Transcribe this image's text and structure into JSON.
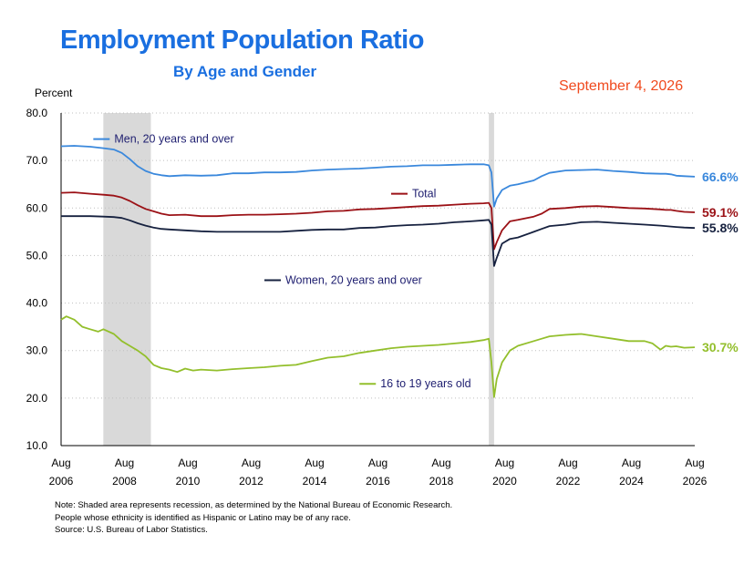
{
  "header": {
    "title": "Employment Population Ratio",
    "subtitle": "By Age and Gender",
    "date": "September 4, 2026",
    "ylabel": "Percent"
  },
  "notes": [
    "Note: Shaded area represents recession, as determined by the National Bureau of Economic Research.",
    "People whose ethnicity is identified as Hispanic or Latino may be of any race.",
    "Source: U.S. Bureau of Labor Statistics."
  ],
  "colors": {
    "men": "#3a88dc",
    "total": "#9b1116",
    "women": "#16213f",
    "teen": "#93bf2c",
    "recession": "#d9d9d9",
    "grid": "#bfbfbf"
  },
  "chart_data": {
    "type": "line",
    "ylabel": "Percent",
    "ylim": [
      10,
      80
    ],
    "yticks": [
      "10.0",
      "20.0",
      "30.0",
      "40.0",
      "50.0",
      "60.0",
      "70.0",
      "80.0"
    ],
    "xlim": [
      2006.583,
      2026.583
    ],
    "xticks": [
      {
        "month": "Aug",
        "year": "2006"
      },
      {
        "month": "Aug",
        "year": "2008"
      },
      {
        "month": "Aug",
        "year": "2010"
      },
      {
        "month": "Aug",
        "year": "2012"
      },
      {
        "month": "Aug",
        "year": "2014"
      },
      {
        "month": "Aug",
        "year": "2016"
      },
      {
        "month": "Aug",
        "year": "2018"
      },
      {
        "month": "Aug",
        "year": "2020"
      },
      {
        "month": "Aug",
        "year": "2022"
      },
      {
        "month": "Aug",
        "year": "2024"
      },
      {
        "month": "Aug",
        "year": "2026"
      }
    ],
    "grid": "horizontal dotted",
    "recessions": [
      [
        2007.917,
        2009.417
      ],
      [
        2020.083,
        2020.25
      ]
    ],
    "series": [
      {
        "key": "men",
        "name": "Men, 20 years and over",
        "end_label": "66.6%",
        "legend_x": 2007.6,
        "legend_y": 74.5,
        "points": [
          [
            2006.583,
            73.0
          ],
          [
            2007.0,
            73.1
          ],
          [
            2007.5,
            72.9
          ],
          [
            2007.917,
            72.6
          ],
          [
            2008.25,
            72.3
          ],
          [
            2008.5,
            71.6
          ],
          [
            2008.75,
            70.3
          ],
          [
            2009.0,
            68.8
          ],
          [
            2009.25,
            67.8
          ],
          [
            2009.5,
            67.2
          ],
          [
            2009.75,
            66.9
          ],
          [
            2010.0,
            66.7
          ],
          [
            2010.5,
            66.9
          ],
          [
            2011.0,
            66.8
          ],
          [
            2011.5,
            66.9
          ],
          [
            2012.0,
            67.3
          ],
          [
            2012.5,
            67.3
          ],
          [
            2013.0,
            67.5
          ],
          [
            2013.5,
            67.5
          ],
          [
            2014.0,
            67.6
          ],
          [
            2014.5,
            67.9
          ],
          [
            2015.0,
            68.1
          ],
          [
            2015.5,
            68.2
          ],
          [
            2016.0,
            68.3
          ],
          [
            2016.5,
            68.5
          ],
          [
            2017.0,
            68.7
          ],
          [
            2017.5,
            68.8
          ],
          [
            2018.0,
            69.0
          ],
          [
            2018.5,
            69.0
          ],
          [
            2019.0,
            69.1
          ],
          [
            2019.5,
            69.2
          ],
          [
            2019.917,
            69.2
          ],
          [
            2020.083,
            69.0
          ],
          [
            2020.167,
            67.5
          ],
          [
            2020.25,
            60.3
          ],
          [
            2020.333,
            62.0
          ],
          [
            2020.5,
            63.8
          ],
          [
            2020.75,
            64.7
          ],
          [
            2021.0,
            65.0
          ],
          [
            2021.5,
            65.8
          ],
          [
            2021.75,
            66.7
          ],
          [
            2022.0,
            67.4
          ],
          [
            2022.5,
            67.9
          ],
          [
            2023.0,
            68.0
          ],
          [
            2023.5,
            68.1
          ],
          [
            2024.0,
            67.8
          ],
          [
            2024.5,
            67.6
          ],
          [
            2025.0,
            67.3
          ],
          [
            2025.5,
            67.2
          ],
          [
            2025.667,
            67.2
          ],
          [
            2025.833,
            67.1
          ],
          [
            2026.0,
            66.8
          ],
          [
            2026.25,
            66.7
          ],
          [
            2026.583,
            66.6
          ]
        ]
      },
      {
        "key": "total",
        "name": "Total",
        "end_label": "59.1%",
        "legend_x": 2017.0,
        "legend_y": 63.0,
        "points": [
          [
            2006.583,
            63.2
          ],
          [
            2007.0,
            63.3
          ],
          [
            2007.5,
            63.0
          ],
          [
            2007.917,
            62.8
          ],
          [
            2008.25,
            62.6
          ],
          [
            2008.5,
            62.2
          ],
          [
            2008.75,
            61.5
          ],
          [
            2009.0,
            60.6
          ],
          [
            2009.25,
            59.8
          ],
          [
            2009.5,
            59.3
          ],
          [
            2009.75,
            58.8
          ],
          [
            2010.0,
            58.5
          ],
          [
            2010.5,
            58.6
          ],
          [
            2011.0,
            58.3
          ],
          [
            2011.5,
            58.3
          ],
          [
            2012.0,
            58.5
          ],
          [
            2012.5,
            58.6
          ],
          [
            2013.0,
            58.6
          ],
          [
            2013.5,
            58.7
          ],
          [
            2014.0,
            58.8
          ],
          [
            2014.5,
            59.0
          ],
          [
            2015.0,
            59.3
          ],
          [
            2015.5,
            59.4
          ],
          [
            2016.0,
            59.7
          ],
          [
            2016.5,
            59.8
          ],
          [
            2017.0,
            60.0
          ],
          [
            2017.5,
            60.2
          ],
          [
            2018.0,
            60.4
          ],
          [
            2018.5,
            60.5
          ],
          [
            2019.0,
            60.7
          ],
          [
            2019.5,
            60.9
          ],
          [
            2019.917,
            61.0
          ],
          [
            2020.083,
            61.1
          ],
          [
            2020.167,
            60.0
          ],
          [
            2020.25,
            51.3
          ],
          [
            2020.333,
            52.8
          ],
          [
            2020.5,
            55.3
          ],
          [
            2020.75,
            57.2
          ],
          [
            2021.0,
            57.5
          ],
          [
            2021.5,
            58.2
          ],
          [
            2021.75,
            58.8
          ],
          [
            2022.0,
            59.8
          ],
          [
            2022.5,
            60.0
          ],
          [
            2023.0,
            60.3
          ],
          [
            2023.5,
            60.4
          ],
          [
            2024.0,
            60.2
          ],
          [
            2024.5,
            60.0
          ],
          [
            2025.0,
            59.9
          ],
          [
            2025.5,
            59.7
          ],
          [
            2025.667,
            59.6
          ],
          [
            2025.833,
            59.6
          ],
          [
            2026.0,
            59.4
          ],
          [
            2026.25,
            59.2
          ],
          [
            2026.583,
            59.1
          ]
        ]
      },
      {
        "key": "women",
        "name": "Women, 20 years and over",
        "end_label": "55.8%",
        "legend_x": 2013.0,
        "legend_y": 44.8,
        "points": [
          [
            2006.583,
            58.3
          ],
          [
            2007.0,
            58.3
          ],
          [
            2007.5,
            58.3
          ],
          [
            2007.917,
            58.2
          ],
          [
            2008.25,
            58.1
          ],
          [
            2008.5,
            57.9
          ],
          [
            2008.75,
            57.4
          ],
          [
            2009.0,
            56.8
          ],
          [
            2009.25,
            56.3
          ],
          [
            2009.5,
            55.9
          ],
          [
            2009.75,
            55.6
          ],
          [
            2010.0,
            55.5
          ],
          [
            2010.5,
            55.3
          ],
          [
            2011.0,
            55.1
          ],
          [
            2011.5,
            55.0
          ],
          [
            2012.0,
            55.0
          ],
          [
            2012.5,
            55.0
          ],
          [
            2013.0,
            55.0
          ],
          [
            2013.5,
            55.0
          ],
          [
            2014.0,
            55.2
          ],
          [
            2014.5,
            55.4
          ],
          [
            2015.0,
            55.5
          ],
          [
            2015.5,
            55.5
          ],
          [
            2016.0,
            55.8
          ],
          [
            2016.5,
            55.9
          ],
          [
            2017.0,
            56.2
          ],
          [
            2017.5,
            56.4
          ],
          [
            2018.0,
            56.5
          ],
          [
            2018.5,
            56.7
          ],
          [
            2019.0,
            57.0
          ],
          [
            2019.5,
            57.2
          ],
          [
            2019.917,
            57.4
          ],
          [
            2020.083,
            57.5
          ],
          [
            2020.167,
            56.5
          ],
          [
            2020.25,
            47.8
          ],
          [
            2020.333,
            49.5
          ],
          [
            2020.5,
            52.5
          ],
          [
            2020.75,
            53.5
          ],
          [
            2021.0,
            53.8
          ],
          [
            2021.5,
            55.0
          ],
          [
            2021.75,
            55.6
          ],
          [
            2022.0,
            56.2
          ],
          [
            2022.5,
            56.5
          ],
          [
            2023.0,
            57.0
          ],
          [
            2023.5,
            57.1
          ],
          [
            2024.0,
            56.9
          ],
          [
            2024.5,
            56.7
          ],
          [
            2025.0,
            56.5
          ],
          [
            2025.5,
            56.3
          ],
          [
            2025.667,
            56.2
          ],
          [
            2025.833,
            56.1
          ],
          [
            2026.0,
            56.0
          ],
          [
            2026.25,
            55.9
          ],
          [
            2026.583,
            55.8
          ]
        ]
      },
      {
        "key": "teen",
        "name": "16 to 19 years old",
        "end_label": "30.7%",
        "legend_x": 2016.0,
        "legend_y": 23.0,
        "points": [
          [
            2006.583,
            36.5
          ],
          [
            2006.75,
            37.2
          ],
          [
            2007.0,
            36.5
          ],
          [
            2007.25,
            35.0
          ],
          [
            2007.5,
            34.5
          ],
          [
            2007.75,
            34.0
          ],
          [
            2007.917,
            34.5
          ],
          [
            2008.25,
            33.5
          ],
          [
            2008.5,
            32.0
          ],
          [
            2008.75,
            31.0
          ],
          [
            2009.0,
            30.0
          ],
          [
            2009.25,
            28.8
          ],
          [
            2009.5,
            27.0
          ],
          [
            2009.75,
            26.3
          ],
          [
            2010.0,
            26.0
          ],
          [
            2010.25,
            25.5
          ],
          [
            2010.5,
            26.2
          ],
          [
            2010.75,
            25.8
          ],
          [
            2011.0,
            26.0
          ],
          [
            2011.5,
            25.8
          ],
          [
            2012.0,
            26.1
          ],
          [
            2012.5,
            26.3
          ],
          [
            2013.0,
            26.5
          ],
          [
            2013.5,
            26.8
          ],
          [
            2014.0,
            27.0
          ],
          [
            2014.5,
            27.8
          ],
          [
            2015.0,
            28.5
          ],
          [
            2015.5,
            28.8
          ],
          [
            2016.0,
            29.5
          ],
          [
            2016.5,
            30.0
          ],
          [
            2017.0,
            30.5
          ],
          [
            2017.5,
            30.8
          ],
          [
            2018.0,
            31.0
          ],
          [
            2018.5,
            31.2
          ],
          [
            2019.0,
            31.5
          ],
          [
            2019.5,
            31.8
          ],
          [
            2019.917,
            32.2
          ],
          [
            2020.083,
            32.5
          ],
          [
            2020.167,
            27.5
          ],
          [
            2020.25,
            20.2
          ],
          [
            2020.333,
            24.0
          ],
          [
            2020.5,
            27.5
          ],
          [
            2020.75,
            30.0
          ],
          [
            2021.0,
            31.0
          ],
          [
            2021.5,
            32.0
          ],
          [
            2021.75,
            32.5
          ],
          [
            2022.0,
            33.0
          ],
          [
            2022.5,
            33.3
          ],
          [
            2023.0,
            33.5
          ],
          [
            2023.5,
            33.0
          ],
          [
            2024.0,
            32.5
          ],
          [
            2024.5,
            32.0
          ],
          [
            2025.0,
            32.0
          ],
          [
            2025.25,
            31.5
          ],
          [
            2025.5,
            30.2
          ],
          [
            2025.667,
            31.0
          ],
          [
            2025.833,
            30.8
          ],
          [
            2026.0,
            30.9
          ],
          [
            2026.25,
            30.6
          ],
          [
            2026.583,
            30.7
          ]
        ]
      }
    ]
  }
}
